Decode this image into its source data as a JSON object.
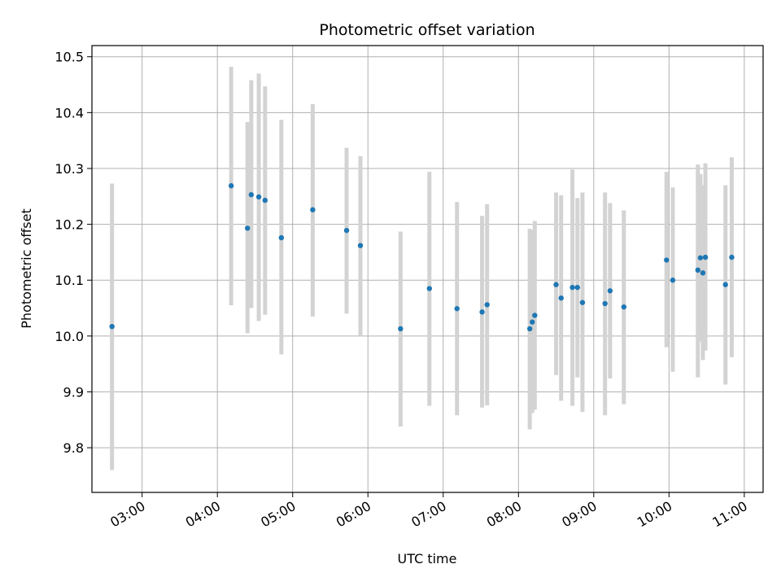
{
  "chart_data": {
    "type": "scatter",
    "title": "Photometric offset variation",
    "xlabel": "UTC time",
    "ylabel": "Photometric offset",
    "x_tick_labels": [
      "03:00",
      "04:00",
      "05:00",
      "06:00",
      "07:00",
      "08:00",
      "09:00",
      "10:00",
      "11:00"
    ],
    "y_tick_labels": [
      "9.8",
      "9.9",
      "10.0",
      "10.1",
      "10.2",
      "10.3",
      "10.4",
      "10.5"
    ],
    "xlim": [
      "02:20",
      "11:15"
    ],
    "ylim": [
      9.72,
      10.52
    ],
    "grid": true,
    "legend": "none",
    "colors": {
      "point": "#1f77b4",
      "errorbar": "#d3d3d3",
      "grid": "#b0b0b0"
    },
    "points": [
      {
        "x": "02:36",
        "y": 10.017,
        "err_low": 9.76,
        "err_high": 10.273
      },
      {
        "x": "04:11",
        "y": 10.269,
        "err_low": 10.055,
        "err_high": 10.482
      },
      {
        "x": "04:24",
        "y": 10.193,
        "err_low": 10.005,
        "err_high": 10.383
      },
      {
        "x": "04:27",
        "y": 10.253,
        "err_low": 10.05,
        "err_high": 10.458
      },
      {
        "x": "04:33",
        "y": 10.249,
        "err_low": 10.027,
        "err_high": 10.47
      },
      {
        "x": "04:38",
        "y": 10.243,
        "err_low": 10.038,
        "err_high": 10.447
      },
      {
        "x": "04:51",
        "y": 10.176,
        "err_low": 9.967,
        "err_high": 10.387
      },
      {
        "x": "05:16",
        "y": 10.226,
        "err_low": 10.035,
        "err_high": 10.415
      },
      {
        "x": "05:43",
        "y": 10.189,
        "err_low": 10.04,
        "err_high": 10.337
      },
      {
        "x": "05:54",
        "y": 10.162,
        "err_low": 10.0,
        "err_high": 10.322
      },
      {
        "x": "06:26",
        "y": 10.013,
        "err_low": 9.838,
        "err_high": 10.187
      },
      {
        "x": "06:49",
        "y": 10.085,
        "err_low": 9.875,
        "err_high": 10.294
      },
      {
        "x": "07:11",
        "y": 10.049,
        "err_low": 9.858,
        "err_high": 10.24
      },
      {
        "x": "07:31",
        "y": 10.043,
        "err_low": 9.872,
        "err_high": 10.215
      },
      {
        "x": "07:35",
        "y": 10.056,
        "err_low": 9.876,
        "err_high": 10.236
      },
      {
        "x": "08:09",
        "y": 10.013,
        "err_low": 9.833,
        "err_high": 10.192
      },
      {
        "x": "08:11",
        "y": 10.025,
        "err_low": 9.862,
        "err_high": 10.19
      },
      {
        "x": "08:13",
        "y": 10.037,
        "err_low": 9.868,
        "err_high": 10.206
      },
      {
        "x": "08:30",
        "y": 10.092,
        "err_low": 9.93,
        "err_high": 10.257
      },
      {
        "x": "08:34",
        "y": 10.068,
        "err_low": 9.884,
        "err_high": 10.252
      },
      {
        "x": "08:43",
        "y": 10.087,
        "err_low": 9.875,
        "err_high": 10.298
      },
      {
        "x": "08:47",
        "y": 10.087,
        "err_low": 9.926,
        "err_high": 10.247
      },
      {
        "x": "08:51",
        "y": 10.06,
        "err_low": 9.864,
        "err_high": 10.257
      },
      {
        "x": "09:09",
        "y": 10.058,
        "err_low": 9.858,
        "err_high": 10.257
      },
      {
        "x": "09:13",
        "y": 10.081,
        "err_low": 9.924,
        "err_high": 10.238
      },
      {
        "x": "09:24",
        "y": 10.052,
        "err_low": 9.878,
        "err_high": 10.225
      },
      {
        "x": "09:58",
        "y": 10.136,
        "err_low": 9.98,
        "err_high": 10.294
      },
      {
        "x": "10:03",
        "y": 10.1,
        "err_low": 9.936,
        "err_high": 10.266
      },
      {
        "x": "10:23",
        "y": 10.118,
        "err_low": 9.926,
        "err_high": 10.307
      },
      {
        "x": "10:25",
        "y": 10.14,
        "err_low": 9.99,
        "err_high": 10.29
      },
      {
        "x": "10:27",
        "y": 10.113,
        "err_low": 9.957,
        "err_high": 10.27
      },
      {
        "x": "10:29",
        "y": 10.141,
        "err_low": 9.974,
        "err_high": 10.309
      },
      {
        "x": "10:45",
        "y": 10.092,
        "err_low": 9.913,
        "err_high": 10.27
      },
      {
        "x": "10:50",
        "y": 10.141,
        "err_low": 9.962,
        "err_high": 10.32
      }
    ]
  }
}
